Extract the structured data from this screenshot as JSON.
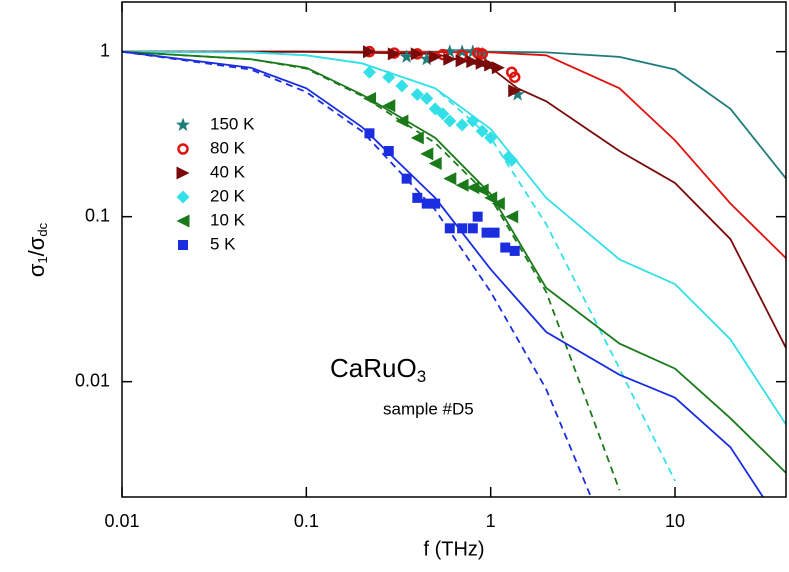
{
  "chart_data": {
    "type": "scatter",
    "xscale": "log",
    "yscale": "log",
    "xlabel": "f (THz)",
    "ylabel": [
      "σ",
      "1",
      "/σ",
      "dc"
    ],
    "annotation": [
      "CaRuO",
      "3"
    ],
    "annotation2": "sample #D5",
    "xlim": [
      0.01,
      40
    ],
    "ylim": [
      0.002,
      2
    ],
    "xticks": [
      0.01,
      0.1,
      1,
      10
    ],
    "yticks": [
      0.01,
      0.1,
      1
    ],
    "legend": "upper left",
    "series": [
      {
        "name": "150 K",
        "color": "#1f7c7c",
        "marker": "star",
        "x": [
          0.35,
          0.45,
          0.6,
          0.7,
          0.8,
          0.9,
          1.4
        ],
        "values": [
          0.93,
          0.9,
          1,
          1,
          1,
          0.97,
          0.55
        ]
      },
      {
        "name": "80 K",
        "color": "#e0140f",
        "marker": "circle",
        "x": [
          0.22,
          0.3,
          0.4,
          0.55,
          0.7,
          0.85,
          0.9,
          1.3,
          1.35
        ],
        "values": [
          1,
          0.98,
          0.97,
          0.96,
          0.95,
          0.98,
          0.97,
          0.75,
          0.7
        ]
      },
      {
        "name": "40 K",
        "color": "#7a0a0a",
        "marker": "tri-right",
        "x": [
          0.22,
          0.3,
          0.4,
          0.5,
          0.6,
          0.7,
          0.8,
          0.9,
          1,
          1.1,
          1.35
        ],
        "values": [
          1,
          0.97,
          0.97,
          0.93,
          0.9,
          0.88,
          0.87,
          0.85,
          0.83,
          0.8,
          0.58
        ]
      },
      {
        "name": "20 K",
        "color": "#33e0e8",
        "marker": "diamond",
        "x": [
          0.22,
          0.28,
          0.33,
          0.4,
          0.45,
          0.5,
          0.55,
          0.6,
          0.7,
          0.8,
          0.9,
          1,
          1.25,
          1.3
        ],
        "values": [
          0.75,
          0.7,
          0.62,
          0.55,
          0.52,
          0.45,
          0.42,
          0.38,
          0.36,
          0.38,
          0.33,
          0.3,
          0.23,
          0.22
        ]
      },
      {
        "name": "10 K",
        "color": "#1a7a1a",
        "marker": "tri-left",
        "x": [
          0.22,
          0.28,
          0.33,
          0.4,
          0.45,
          0.5,
          0.6,
          0.7,
          0.8,
          0.9,
          1,
          1.1,
          1.3
        ],
        "values": [
          0.52,
          0.47,
          0.38,
          0.3,
          0.24,
          0.21,
          0.17,
          0.155,
          0.15,
          0.145,
          0.13,
          0.12,
          0.1
        ]
      },
      {
        "name": "5 K",
        "color": "#1a2ee0",
        "marker": "square",
        "x": [
          0.22,
          0.28,
          0.35,
          0.4,
          0.45,
          0.5,
          0.6,
          0.7,
          0.8,
          0.85,
          0.95,
          1.05,
          1.2,
          1.35
        ],
        "values": [
          0.32,
          0.25,
          0.17,
          0.13,
          0.12,
          0.12,
          0.085,
          0.085,
          0.085,
          0.1,
          0.08,
          0.08,
          0.065,
          0.062
        ]
      }
    ],
    "lines": [
      {
        "color": "#1f7c7c",
        "dashed": false,
        "x": [
          0.01,
          0.1,
          1,
          2,
          5,
          10,
          20,
          40
        ],
        "values": [
          1,
          1,
          1,
          0.99,
          0.93,
          0.78,
          0.45,
          0.17
        ]
      },
      {
        "color": "#e0140f",
        "dashed": false,
        "x": [
          0.01,
          0.1,
          1,
          2,
          5,
          10,
          20,
          40
        ],
        "values": [
          1,
          1,
          0.99,
          0.95,
          0.6,
          0.29,
          0.12,
          0.056
        ]
      },
      {
        "color": "#7a0a0a",
        "dashed": false,
        "x": [
          0.01,
          0.1,
          0.5,
          1,
          1.4,
          2,
          5,
          10,
          20,
          40
        ],
        "values": [
          1,
          1,
          0.97,
          0.8,
          0.6,
          0.5,
          0.25,
          0.16,
          0.073,
          0.016
        ]
      },
      {
        "color": "#33e0e8",
        "dashed": false,
        "x": [
          0.01,
          0.05,
          0.1,
          0.2,
          0.5,
          1,
          2,
          5,
          10,
          20,
          40
        ],
        "values": [
          1,
          0.99,
          0.95,
          0.85,
          0.6,
          0.34,
          0.13,
          0.055,
          0.039,
          0.018,
          0.0055
        ]
      },
      {
        "color": "#33e0e8",
        "dashed": true,
        "x": [
          0.01,
          0.05,
          0.1,
          0.2,
          0.5,
          1,
          2,
          5,
          10
        ],
        "values": [
          1,
          0.99,
          0.95,
          0.85,
          0.6,
          0.3,
          0.09,
          0.012,
          0.0025
        ]
      },
      {
        "color": "#1a7a1a",
        "dashed": false,
        "x": [
          0.01,
          0.05,
          0.1,
          0.2,
          0.5,
          1,
          2,
          5,
          10,
          20,
          40
        ],
        "values": [
          1,
          0.9,
          0.8,
          0.55,
          0.3,
          0.137,
          0.037,
          0.017,
          0.012,
          0.006,
          0.0028
        ]
      },
      {
        "color": "#1a7a1a",
        "dashed": true,
        "x": [
          0.01,
          0.05,
          0.1,
          0.2,
          0.5,
          1,
          2,
          5
        ],
        "values": [
          1,
          0.9,
          0.79,
          0.54,
          0.28,
          0.13,
          0.035,
          0.0022
        ]
      },
      {
        "color": "#1a2ee0",
        "dashed": false,
        "x": [
          0.01,
          0.05,
          0.1,
          0.2,
          0.5,
          1,
          2,
          5,
          10,
          20,
          30
        ],
        "values": [
          1,
          0.8,
          0.6,
          0.35,
          0.13,
          0.048,
          0.02,
          0.011,
          0.008,
          0.004,
          0.002
        ]
      },
      {
        "color": "#1a2ee0",
        "dashed": true,
        "x": [
          0.01,
          0.05,
          0.1,
          0.2,
          0.5,
          1,
          2,
          3.5
        ],
        "values": [
          1,
          0.78,
          0.57,
          0.33,
          0.11,
          0.035,
          0.009,
          0.002
        ]
      }
    ]
  }
}
